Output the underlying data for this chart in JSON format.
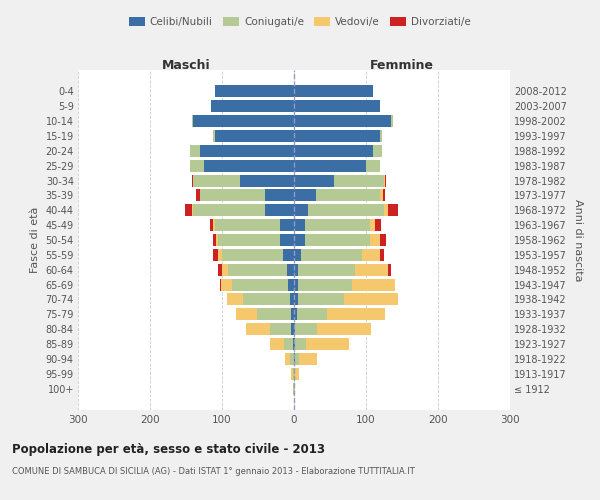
{
  "age_groups": [
    "100+",
    "95-99",
    "90-94",
    "85-89",
    "80-84",
    "75-79",
    "70-74",
    "65-69",
    "60-64",
    "55-59",
    "50-54",
    "45-49",
    "40-44",
    "35-39",
    "30-34",
    "25-29",
    "20-24",
    "15-19",
    "10-14",
    "5-9",
    "0-4"
  ],
  "birth_years": [
    "≤ 1912",
    "1913-1917",
    "1918-1922",
    "1923-1927",
    "1928-1932",
    "1933-1937",
    "1938-1942",
    "1943-1947",
    "1948-1952",
    "1953-1957",
    "1958-1962",
    "1963-1967",
    "1968-1972",
    "1973-1977",
    "1978-1982",
    "1983-1987",
    "1988-1992",
    "1993-1997",
    "1998-2002",
    "2003-2007",
    "2008-2012"
  ],
  "maschi": {
    "celibi": [
      0,
      0,
      0,
      2,
      4,
      4,
      6,
      8,
      10,
      15,
      20,
      20,
      40,
      40,
      75,
      125,
      130,
      110,
      140,
      115,
      110
    ],
    "coniugati": [
      1,
      2,
      5,
      12,
      30,
      48,
      65,
      78,
      82,
      85,
      85,
      90,
      100,
      90,
      65,
      20,
      15,
      2,
      2,
      0,
      0
    ],
    "vedovi": [
      0,
      2,
      8,
      20,
      32,
      28,
      22,
      15,
      8,
      5,
      3,
      2,
      1,
      1,
      0,
      0,
      0,
      0,
      0,
      0,
      0
    ],
    "divorziati": [
      0,
      0,
      0,
      0,
      0,
      0,
      0,
      2,
      5,
      8,
      5,
      5,
      10,
      5,
      2,
      0,
      0,
      0,
      0,
      0,
      0
    ]
  },
  "femmine": {
    "nubili": [
      0,
      0,
      2,
      2,
      2,
      4,
      5,
      5,
      5,
      10,
      15,
      15,
      20,
      30,
      55,
      100,
      110,
      120,
      135,
      120,
      110
    ],
    "coniugate": [
      0,
      2,
      5,
      15,
      30,
      42,
      65,
      75,
      80,
      85,
      90,
      90,
      105,
      90,
      70,
      20,
      12,
      2,
      2,
      0,
      0
    ],
    "vedove": [
      1,
      5,
      25,
      60,
      75,
      80,
      75,
      60,
      45,
      25,
      15,
      8,
      5,
      3,
      1,
      0,
      0,
      0,
      0,
      0,
      0
    ],
    "divorziate": [
      0,
      0,
      0,
      0,
      0,
      0,
      0,
      0,
      5,
      5,
      8,
      8,
      15,
      3,
      2,
      0,
      0,
      0,
      0,
      0,
      0
    ]
  },
  "colors": {
    "celibi": "#3a6ea5",
    "coniugati": "#b5c994",
    "vedovi": "#f5c86e",
    "divorziati": "#cc2222"
  },
  "title": "Popolazione per età, sesso e stato civile - 2013",
  "subtitle": "COMUNE DI SAMBUCA DI SICILIA (AG) - Dati ISTAT 1° gennaio 2013 - Elaborazione TUTTITALIA.IT",
  "xlabel_left": "Maschi",
  "xlabel_right": "Femmine",
  "ylabel_left": "Fasce di età",
  "ylabel_right": "Anni di nascita",
  "xlim": 300,
  "bg_color": "#f0f0f0",
  "plot_bg_color": "#ffffff",
  "grid_color": "#cccccc"
}
